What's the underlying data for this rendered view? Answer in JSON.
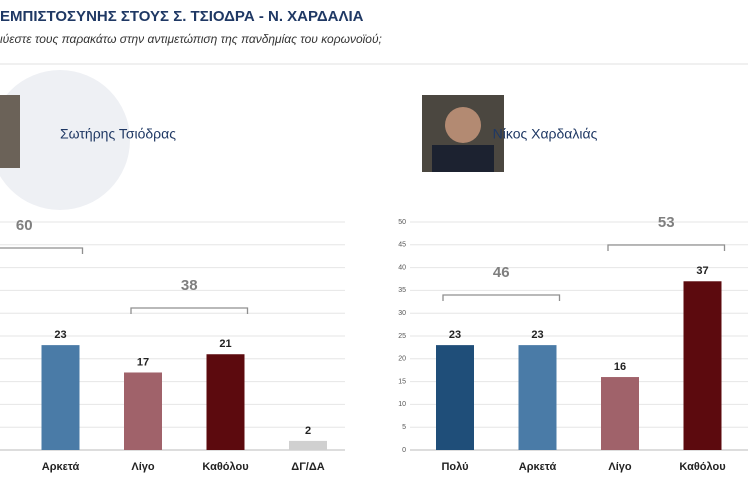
{
  "header": {
    "title": "ΕΜΠΙΣΤΟΣΥΝΗΣ ΣΤΟΥΣ Σ. ΤΣΙΟΔΡΑ - Ν. ΧΑΡΔΑΛΙΑ",
    "subtitle": "ιύεστε τους παρακάτω στην αντιμετώπιση της πανδημίας του κορωνοϊού;"
  },
  "chart_data": [
    {
      "type": "bar",
      "title": "Σωτήρης Τσιόδρας",
      "categories": [
        null,
        "Αρκετά",
        "Λίγο",
        "Καθόλου",
        "ΔΓ/ΔΑ"
      ],
      "values": [
        null,
        23,
        17,
        21,
        2
      ],
      "colors": [
        "#1f4e79",
        "#4a7ba7",
        "#a0626a",
        "#5c0a0e",
        "#d0d0d0"
      ],
      "ylim": [
        0,
        50
      ],
      "grid": true,
      "groups": [
        {
          "value": 60,
          "categories": [
            null,
            "Αρκετά"
          ]
        },
        {
          "value": 38,
          "categories": [
            "Λίγο",
            "Καθόλου"
          ]
        }
      ]
    },
    {
      "type": "bar",
      "title": "Νίκος Χαρδαλιάς",
      "categories": [
        "Πολύ",
        "Αρκετά",
        "Λίγο",
        "Καθόλου"
      ],
      "values": [
        23,
        23,
        16,
        37
      ],
      "colors": [
        "#1f4e79",
        "#4a7ba7",
        "#a0626a",
        "#5c0a0e"
      ],
      "ylim": [
        0,
        50
      ],
      "yticks": [
        0,
        5,
        10,
        15,
        20,
        25,
        30,
        35,
        40,
        45,
        50
      ],
      "grid": true,
      "groups": [
        {
          "value": 46,
          "categories": [
            "Πολύ",
            "Αρκετά"
          ]
        },
        {
          "value": 53,
          "categories": [
            "Λίγο",
            "Καθόλου"
          ]
        }
      ]
    }
  ]
}
